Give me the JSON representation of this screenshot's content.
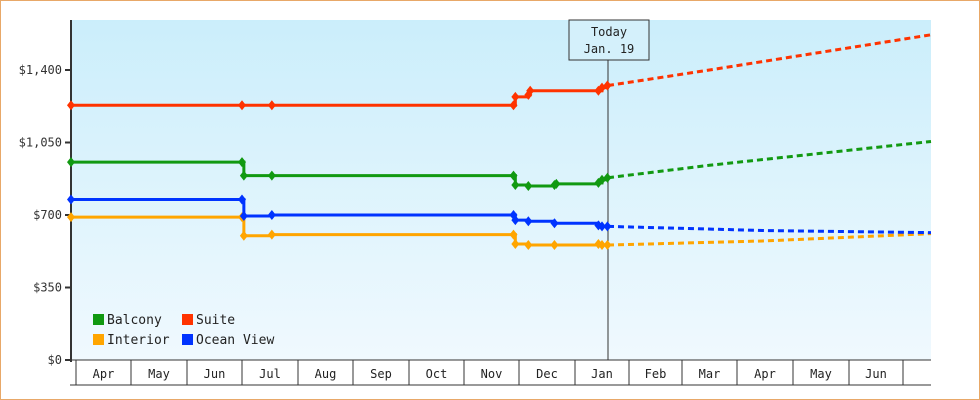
{
  "chart_data": {
    "type": "line",
    "title": "",
    "xlabel": "",
    "ylabel": "",
    "ylim": [
      0,
      1400
    ],
    "y_ticks": [
      "$0",
      "$350",
      "$700",
      "$1,050",
      "$1,400"
    ],
    "y_tick_values": [
      0,
      350,
      700,
      1050,
      1400
    ],
    "x_categories": [
      "Apr",
      "May",
      "Jun",
      "Jul",
      "Aug",
      "Sep",
      "Oct",
      "Nov",
      "Dec",
      "Jan",
      "Feb",
      "Mar",
      "Apr",
      "May",
      "Jun"
    ],
    "grid": false,
    "legend_position": "lower-left inside",
    "annotation": {
      "line1": "Today",
      "line2": "Jan. 19"
    },
    "series": [
      {
        "name": "Balcony",
        "color": "#119911",
        "historical_style": "solid",
        "forecast_style": "dotted",
        "historical": [
          {
            "date": "Apr 1",
            "value": 955
          },
          {
            "date": "Jul 1",
            "value": 955
          },
          {
            "date": "Jul 2",
            "value": 890
          },
          {
            "date": "Jul 17",
            "value": 890
          },
          {
            "date": "Nov 28",
            "value": 890
          },
          {
            "date": "Nov 29",
            "value": 845
          },
          {
            "date": "Dec 6",
            "value": 840
          },
          {
            "date": "Dec 20",
            "value": 845
          },
          {
            "date": "Dec 21",
            "value": 850
          },
          {
            "date": "Jan 14",
            "value": 855
          },
          {
            "date": "Jan 16",
            "value": 870
          },
          {
            "date": "Jan 19",
            "value": 880
          }
        ],
        "forecast": [
          {
            "date": "Jan 19",
            "value": 880
          },
          {
            "date": "Mar",
            "value": 940
          },
          {
            "date": "Jun end",
            "value": 1055
          }
        ]
      },
      {
        "name": "Suite",
        "color": "#ff3300",
        "historical_style": "solid",
        "forecast_style": "dotted",
        "historical": [
          {
            "date": "Apr 1",
            "value": 1230
          },
          {
            "date": "Jul 1",
            "value": 1230
          },
          {
            "date": "Jul 17",
            "value": 1230
          },
          {
            "date": "Nov 28",
            "value": 1230
          },
          {
            "date": "Nov 29",
            "value": 1270
          },
          {
            "date": "Dec 6",
            "value": 1280
          },
          {
            "date": "Dec 7",
            "value": 1300
          },
          {
            "date": "Jan 14",
            "value": 1300
          },
          {
            "date": "Jan 16",
            "value": 1315
          },
          {
            "date": "Jan 19",
            "value": 1325
          }
        ],
        "forecast": [
          {
            "date": "Jan 19",
            "value": 1325
          },
          {
            "date": "Mar",
            "value": 1400
          },
          {
            "date": "Jun end",
            "value": 1570
          }
        ]
      },
      {
        "name": "Interior",
        "color": "#ffa500",
        "historical_style": "solid",
        "forecast_style": "dotted",
        "historical": [
          {
            "date": "Apr 1",
            "value": 690
          },
          {
            "date": "Jul 1",
            "value": 690
          },
          {
            "date": "Jul 2",
            "value": 600
          },
          {
            "date": "Jul 17",
            "value": 605
          },
          {
            "date": "Nov 28",
            "value": 605
          },
          {
            "date": "Nov 29",
            "value": 560
          },
          {
            "date": "Dec 6",
            "value": 555
          },
          {
            "date": "Dec 20",
            "value": 555
          },
          {
            "date": "Jan 14",
            "value": 560
          },
          {
            "date": "Jan 16",
            "value": 555
          },
          {
            "date": "Jan 19",
            "value": 555
          }
        ],
        "forecast": [
          {
            "date": "Jan 19",
            "value": 555
          },
          {
            "date": "Apr",
            "value": 575
          },
          {
            "date": "Jun end",
            "value": 610
          }
        ]
      },
      {
        "name": "Ocean View",
        "color": "#0033ff",
        "historical_style": "solid",
        "forecast_style": "dotted",
        "historical": [
          {
            "date": "Apr 1",
            "value": 775
          },
          {
            "date": "Jul 1",
            "value": 775
          },
          {
            "date": "Jul 2",
            "value": 695
          },
          {
            "date": "Jul 17",
            "value": 700
          },
          {
            "date": "Nov 28",
            "value": 700
          },
          {
            "date": "Nov 29",
            "value": 675
          },
          {
            "date": "Dec 6",
            "value": 670
          },
          {
            "date": "Dec 20",
            "value": 660
          },
          {
            "date": "Jan 14",
            "value": 650
          },
          {
            "date": "Jan 16",
            "value": 645
          },
          {
            "date": "Jan 19",
            "value": 645
          }
        ],
        "forecast": [
          {
            "date": "Jan 19",
            "value": 645
          },
          {
            "date": "Apr",
            "value": 625
          },
          {
            "date": "Jun end",
            "value": 615
          }
        ]
      }
    ]
  },
  "legend": [
    {
      "label": "Balcony",
      "color": "#119911"
    },
    {
      "label": "Suite",
      "color": "#ff3300"
    },
    {
      "label": "Interior",
      "color": "#ffa500"
    },
    {
      "label": "Ocean View",
      "color": "#0033ff"
    }
  ],
  "today_marker": {
    "line1": "Today",
    "line2": "Jan. 19"
  },
  "y_axis": {
    "ticks": [
      {
        "label": "$1,400",
        "value": 1400
      },
      {
        "label": "$1,050",
        "value": 1050
      },
      {
        "label": "$700",
        "value": 700
      },
      {
        "label": "$350",
        "value": 350
      },
      {
        "label": "$0",
        "value": 0
      }
    ]
  },
  "x_axis": {
    "months": [
      "Apr",
      "May",
      "Jun",
      "Jul",
      "Aug",
      "Sep",
      "Oct",
      "Nov",
      "Dec",
      "Jan",
      "Feb",
      "Mar",
      "Apr",
      "May",
      "Jun"
    ]
  },
  "colors": {
    "border": "#e8a868",
    "plot_top": "#cdeffb",
    "plot_bottom": "#f0f9fe",
    "axis": "#333333"
  }
}
